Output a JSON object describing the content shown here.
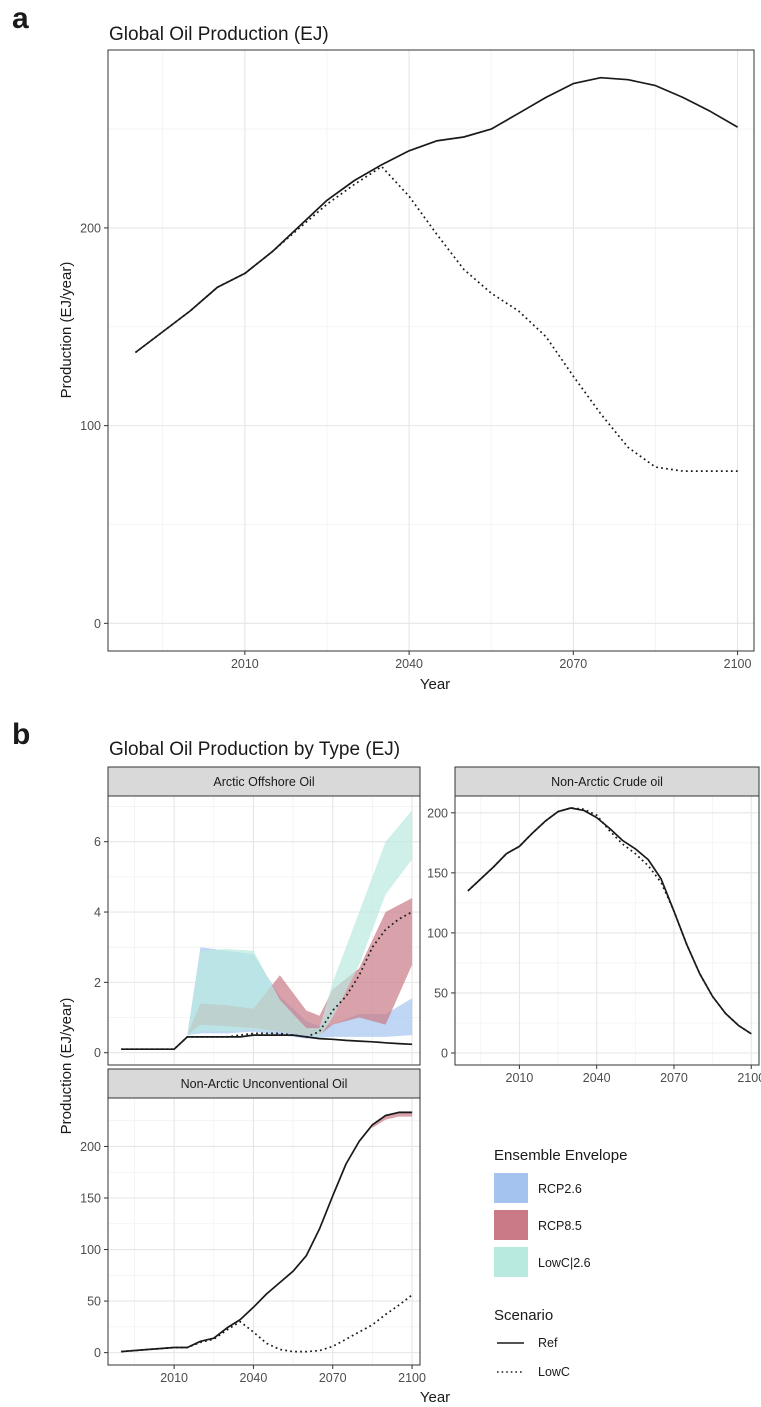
{
  "figure": {
    "label_a": "a",
    "label_b": "b",
    "title_a": "Global Oil Production (EJ)",
    "title_b": "Global Oil Production by Type (EJ)"
  },
  "colors": {
    "RCP2.6": "#a4c4ef",
    "RCP8.5": "#c97a86",
    "LowC|2.6": "#b9eadf",
    "line": "#1a1a1a",
    "panel_border": "#333333",
    "strip_fill": "#d9d9d9",
    "grid_major": "#e6e6e6",
    "grid_minor": "#f2f2f2"
  },
  "chart_data": [
    {
      "id": "a",
      "type": "line",
      "title": "Global Oil Production (EJ)",
      "xlabel": "Year",
      "ylabel": "Production (EJ/year)",
      "xlim": [
        1985,
        2103
      ],
      "ylim": [
        -14,
        290
      ],
      "xticks": [
        2010,
        2040,
        2070,
        2100
      ],
      "yticks": [
        0,
        100,
        200
      ],
      "grid": true,
      "series": [
        {
          "name": "Ref",
          "style": "solid",
          "x": [
            1990,
            2000,
            2005,
            2010,
            2015,
            2020,
            2025,
            2030,
            2035,
            2040,
            2045,
            2050,
            2055,
            2060,
            2065,
            2070,
            2075,
            2080,
            2085,
            2090,
            2095,
            2100
          ],
          "y": [
            137,
            158,
            170,
            177,
            188,
            201,
            214,
            224,
            232,
            239,
            244,
            246,
            250,
            258,
            266,
            273,
            276,
            275,
            272,
            266,
            259,
            251
          ]
        },
        {
          "name": "LowC",
          "style": "dotted",
          "x": [
            1990,
            2000,
            2005,
            2010,
            2015,
            2020,
            2025,
            2030,
            2035,
            2040,
            2045,
            2050,
            2055,
            2060,
            2065,
            2070,
            2075,
            2080,
            2085,
            2090,
            2095,
            2100
          ],
          "y": [
            137,
            158,
            170,
            177,
            188,
            200,
            212,
            222,
            231,
            216,
            197,
            179,
            167,
            158,
            145,
            125,
            106,
            89,
            79,
            77,
            77,
            77
          ]
        }
      ]
    },
    {
      "id": "b1",
      "type": "area",
      "strip": "Arctic Offshore Oil",
      "xlim": [
        1985,
        2103
      ],
      "ylim": [
        -0.35,
        7.3
      ],
      "xticks": [
        2010,
        2040,
        2070,
        2100
      ],
      "yticks": [
        0,
        2,
        4,
        6
      ],
      "ylabel": "Production (EJ/year)",
      "grid": true,
      "envelopes": [
        {
          "name": "RCP2.6",
          "x": [
            2015,
            2020,
            2030,
            2040,
            2050,
            2060,
            2065,
            2070,
            2080,
            2090,
            2100
          ],
          "ymin": [
            0.5,
            0.55,
            0.55,
            0.6,
            0.5,
            0.4,
            0.42,
            0.45,
            0.45,
            0.45,
            0.5
          ],
          "ymax": [
            0.5,
            3.0,
            2.9,
            2.8,
            1.6,
            0.9,
            0.75,
            0.8,
            1.1,
            1.1,
            1.55
          ]
        },
        {
          "name": "RCP8.5",
          "x": [
            2015,
            2020,
            2030,
            2040,
            2050,
            2060,
            2065,
            2070,
            2080,
            2090,
            2100
          ],
          "ymin": [
            0.5,
            0.8,
            0.75,
            0.7,
            0.6,
            0.5,
            0.5,
            0.8,
            1.0,
            0.8,
            2.5
          ],
          "ymax": [
            0.5,
            1.4,
            1.35,
            1.25,
            2.2,
            1.2,
            1.05,
            1.8,
            2.4,
            4.0,
            4.4
          ]
        },
        {
          "name": "LowC|2.6",
          "x": [
            2015,
            2020,
            2030,
            2040,
            2050,
            2060,
            2065,
            2070,
            2080,
            2090,
            2100
          ],
          "ymin": [
            0.5,
            0.6,
            0.6,
            0.65,
            0.6,
            0.5,
            0.45,
            1.0,
            2.5,
            4.5,
            5.5
          ],
          "ymax": [
            0.5,
            2.9,
            2.95,
            2.9,
            1.5,
            0.7,
            0.7,
            2.0,
            4.0,
            6.0,
            6.9
          ]
        }
      ],
      "series": [
        {
          "name": "Ref",
          "style": "solid",
          "x": [
            1990,
            2000,
            2005,
            2010,
            2015,
            2020,
            2025,
            2030,
            2035,
            2040,
            2045,
            2050,
            2055,
            2060,
            2065,
            2070,
            2075,
            2080,
            2085,
            2090,
            2095,
            2100
          ],
          "y": [
            0.1,
            0.1,
            0.1,
            0.1,
            0.45,
            0.45,
            0.45,
            0.45,
            0.45,
            0.5,
            0.5,
            0.5,
            0.5,
            0.45,
            0.4,
            0.38,
            0.35,
            0.33,
            0.31,
            0.28,
            0.26,
            0.24
          ]
        },
        {
          "name": "LowC",
          "style": "dotted",
          "x": [
            1990,
            2000,
            2005,
            2010,
            2015,
            2020,
            2025,
            2030,
            2035,
            2040,
            2045,
            2050,
            2055,
            2060,
            2065,
            2070,
            2075,
            2080,
            2085,
            2090,
            2095,
            2100
          ],
          "y": [
            0.1,
            0.1,
            0.1,
            0.1,
            0.45,
            0.45,
            0.45,
            0.45,
            0.5,
            0.55,
            0.55,
            0.55,
            0.5,
            0.45,
            0.6,
            1.2,
            1.6,
            2.2,
            3.0,
            3.5,
            3.8,
            4.0
          ]
        }
      ]
    },
    {
      "id": "b2",
      "type": "line",
      "strip": "Non-Arctic Crude oil",
      "xlim": [
        1985,
        2103
      ],
      "ylim": [
        -10,
        214
      ],
      "xticks": [
        2010,
        2040,
        2070,
        2100
      ],
      "yticks": [
        0,
        50,
        100,
        150,
        200
      ],
      "xlabel": "",
      "grid": true,
      "series": [
        {
          "name": "Ref",
          "style": "solid",
          "x": [
            1990,
            2000,
            2005,
            2010,
            2015,
            2020,
            2025,
            2030,
            2035,
            2040,
            2045,
            2050,
            2055,
            2060,
            2065,
            2070,
            2075,
            2080,
            2085,
            2090,
            2095,
            2100
          ],
          "y": [
            135,
            155,
            166,
            172,
            183,
            193,
            201,
            204,
            202,
            196,
            187,
            177,
            170,
            161,
            145,
            118,
            90,
            66,
            47,
            33,
            23,
            16
          ]
        },
        {
          "name": "LowC",
          "style": "dotted",
          "x": [
            1990,
            2000,
            2005,
            2010,
            2015,
            2020,
            2025,
            2030,
            2035,
            2040,
            2045,
            2050,
            2055,
            2060,
            2065,
            2070,
            2075,
            2080,
            2085,
            2090,
            2095,
            2100
          ],
          "y": [
            135,
            155,
            166,
            172,
            183,
            193,
            201,
            204,
            203,
            198,
            185,
            174,
            166,
            156,
            142,
            118,
            90,
            66,
            47,
            33,
            23,
            16
          ]
        }
      ]
    },
    {
      "id": "b3",
      "type": "line",
      "strip": "Non-Arctic Unconventional Oil",
      "xlim": [
        1985,
        2103
      ],
      "ylim": [
        -12,
        247
      ],
      "xticks": [
        2010,
        2040,
        2070,
        2100
      ],
      "yticks": [
        0,
        50,
        100,
        150,
        200
      ],
      "xlabel": "Year",
      "grid": true,
      "envelopes": [
        {
          "name": "RCP8.5",
          "x": [
            2085,
            2090,
            2095,
            2100
          ],
          "ymin": [
            218,
            226,
            229,
            229
          ],
          "ymax": [
            221,
            230,
            234,
            234
          ]
        }
      ],
      "series": [
        {
          "name": "Ref",
          "style": "solid",
          "x": [
            1990,
            2000,
            2005,
            2010,
            2015,
            2020,
            2025,
            2030,
            2035,
            2040,
            2045,
            2050,
            2055,
            2060,
            2065,
            2070,
            2075,
            2080,
            2085,
            2090,
            2095,
            2100
          ],
          "y": [
            1,
            3,
            4,
            5,
            5,
            11,
            14,
            24,
            32,
            44,
            57,
            68,
            79,
            94,
            120,
            152,
            183,
            205,
            221,
            230,
            233,
            233
          ]
        },
        {
          "name": "LowC",
          "style": "dotted",
          "x": [
            1990,
            2000,
            2005,
            2010,
            2015,
            2020,
            2025,
            2030,
            2035,
            2040,
            2045,
            2050,
            2055,
            2060,
            2065,
            2070,
            2075,
            2080,
            2085,
            2090,
            2095,
            2100
          ],
          "y": [
            1,
            3,
            4,
            5,
            5,
            10,
            13,
            22,
            30,
            20,
            9,
            3,
            1,
            1,
            2,
            6,
            13,
            20,
            27,
            37,
            46,
            56
          ]
        }
      ]
    }
  ],
  "legend": {
    "envelope_title": "Ensemble Envelope",
    "envelope_items": [
      {
        "label": "RCP2.6",
        "color": "#a4c4ef"
      },
      {
        "label": "RCP8.5",
        "color": "#c97a86"
      },
      {
        "label": "LowC|2.6",
        "color": "#b9eadf"
      }
    ],
    "scenario_title": "Scenario",
    "scenario_items": [
      {
        "label": "Ref",
        "style": "solid"
      },
      {
        "label": "LowC",
        "style": "dotted"
      }
    ]
  },
  "axis_titles": {
    "a_x": "Year",
    "a_y": "Production (EJ/year)",
    "b_x": "Year",
    "b_y": "Production (EJ/year)"
  }
}
